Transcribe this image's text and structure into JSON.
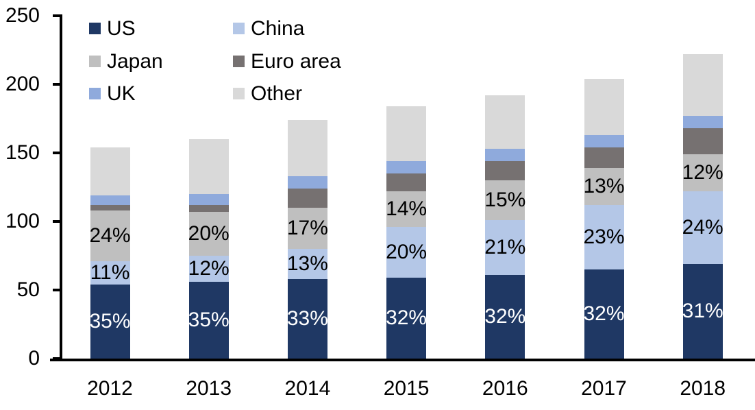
{
  "chart_data": {
    "type": "bar",
    "stacked": true,
    "title": "",
    "xlabel": "",
    "ylabel": "",
    "grid": false,
    "categories": [
      "2012",
      "2013",
      "2014",
      "2015",
      "2016",
      "2017",
      "2018"
    ],
    "series": [
      {
        "name": "US",
        "color": "#1f3864",
        "values": [
          54,
          56,
          58,
          59,
          61,
          65,
          69
        ],
        "labels": [
          "35%",
          "35%",
          "33%",
          "32%",
          "32%",
          "32%",
          "31%"
        ],
        "label_color": "#ffffff"
      },
      {
        "name": "China",
        "color": "#b4c7e7",
        "values": [
          17,
          19,
          22,
          37,
          40,
          47,
          53
        ],
        "labels": [
          "11%",
          "12%",
          "13%",
          "20%",
          "21%",
          "23%",
          "24%"
        ],
        "label_color": "#000000"
      },
      {
        "name": "Japan",
        "color": "#bfbfbf",
        "values": [
          37,
          32,
          30,
          26,
          29,
          27,
          27
        ],
        "labels": [
          "24%",
          "20%",
          "17%",
          "14%",
          "15%",
          "13%",
          "12%"
        ],
        "label_color": "#000000"
      },
      {
        "name": "Euro area",
        "color": "#767171",
        "values": [
          4,
          5,
          14,
          13,
          14,
          15,
          19
        ],
        "labels": null,
        "label_color": "#000000"
      },
      {
        "name": "UK",
        "color": "#8faadc",
        "values": [
          7,
          8,
          9,
          9,
          9,
          9,
          9
        ],
        "labels": null,
        "label_color": "#000000"
      },
      {
        "name": "Other",
        "color": "#d9d9d9",
        "values": [
          35,
          40,
          41,
          40,
          39,
          41,
          45
        ],
        "labels": null,
        "label_color": "#000000"
      }
    ],
    "totals": [
      154,
      160,
      174,
      184,
      192,
      204,
      222
    ],
    "y_axis": {
      "min": 0,
      "max": 250,
      "step": 50,
      "tick_labels": [
        "0",
        "50",
        "100",
        "150",
        "200",
        "250"
      ]
    },
    "legend": {
      "position": "top-left",
      "columns": 2,
      "order": [
        "US",
        "China",
        "Japan",
        "Euro area",
        "UK",
        "Other"
      ]
    },
    "axis_color": "#000000",
    "background_color": "#ffffff"
  }
}
